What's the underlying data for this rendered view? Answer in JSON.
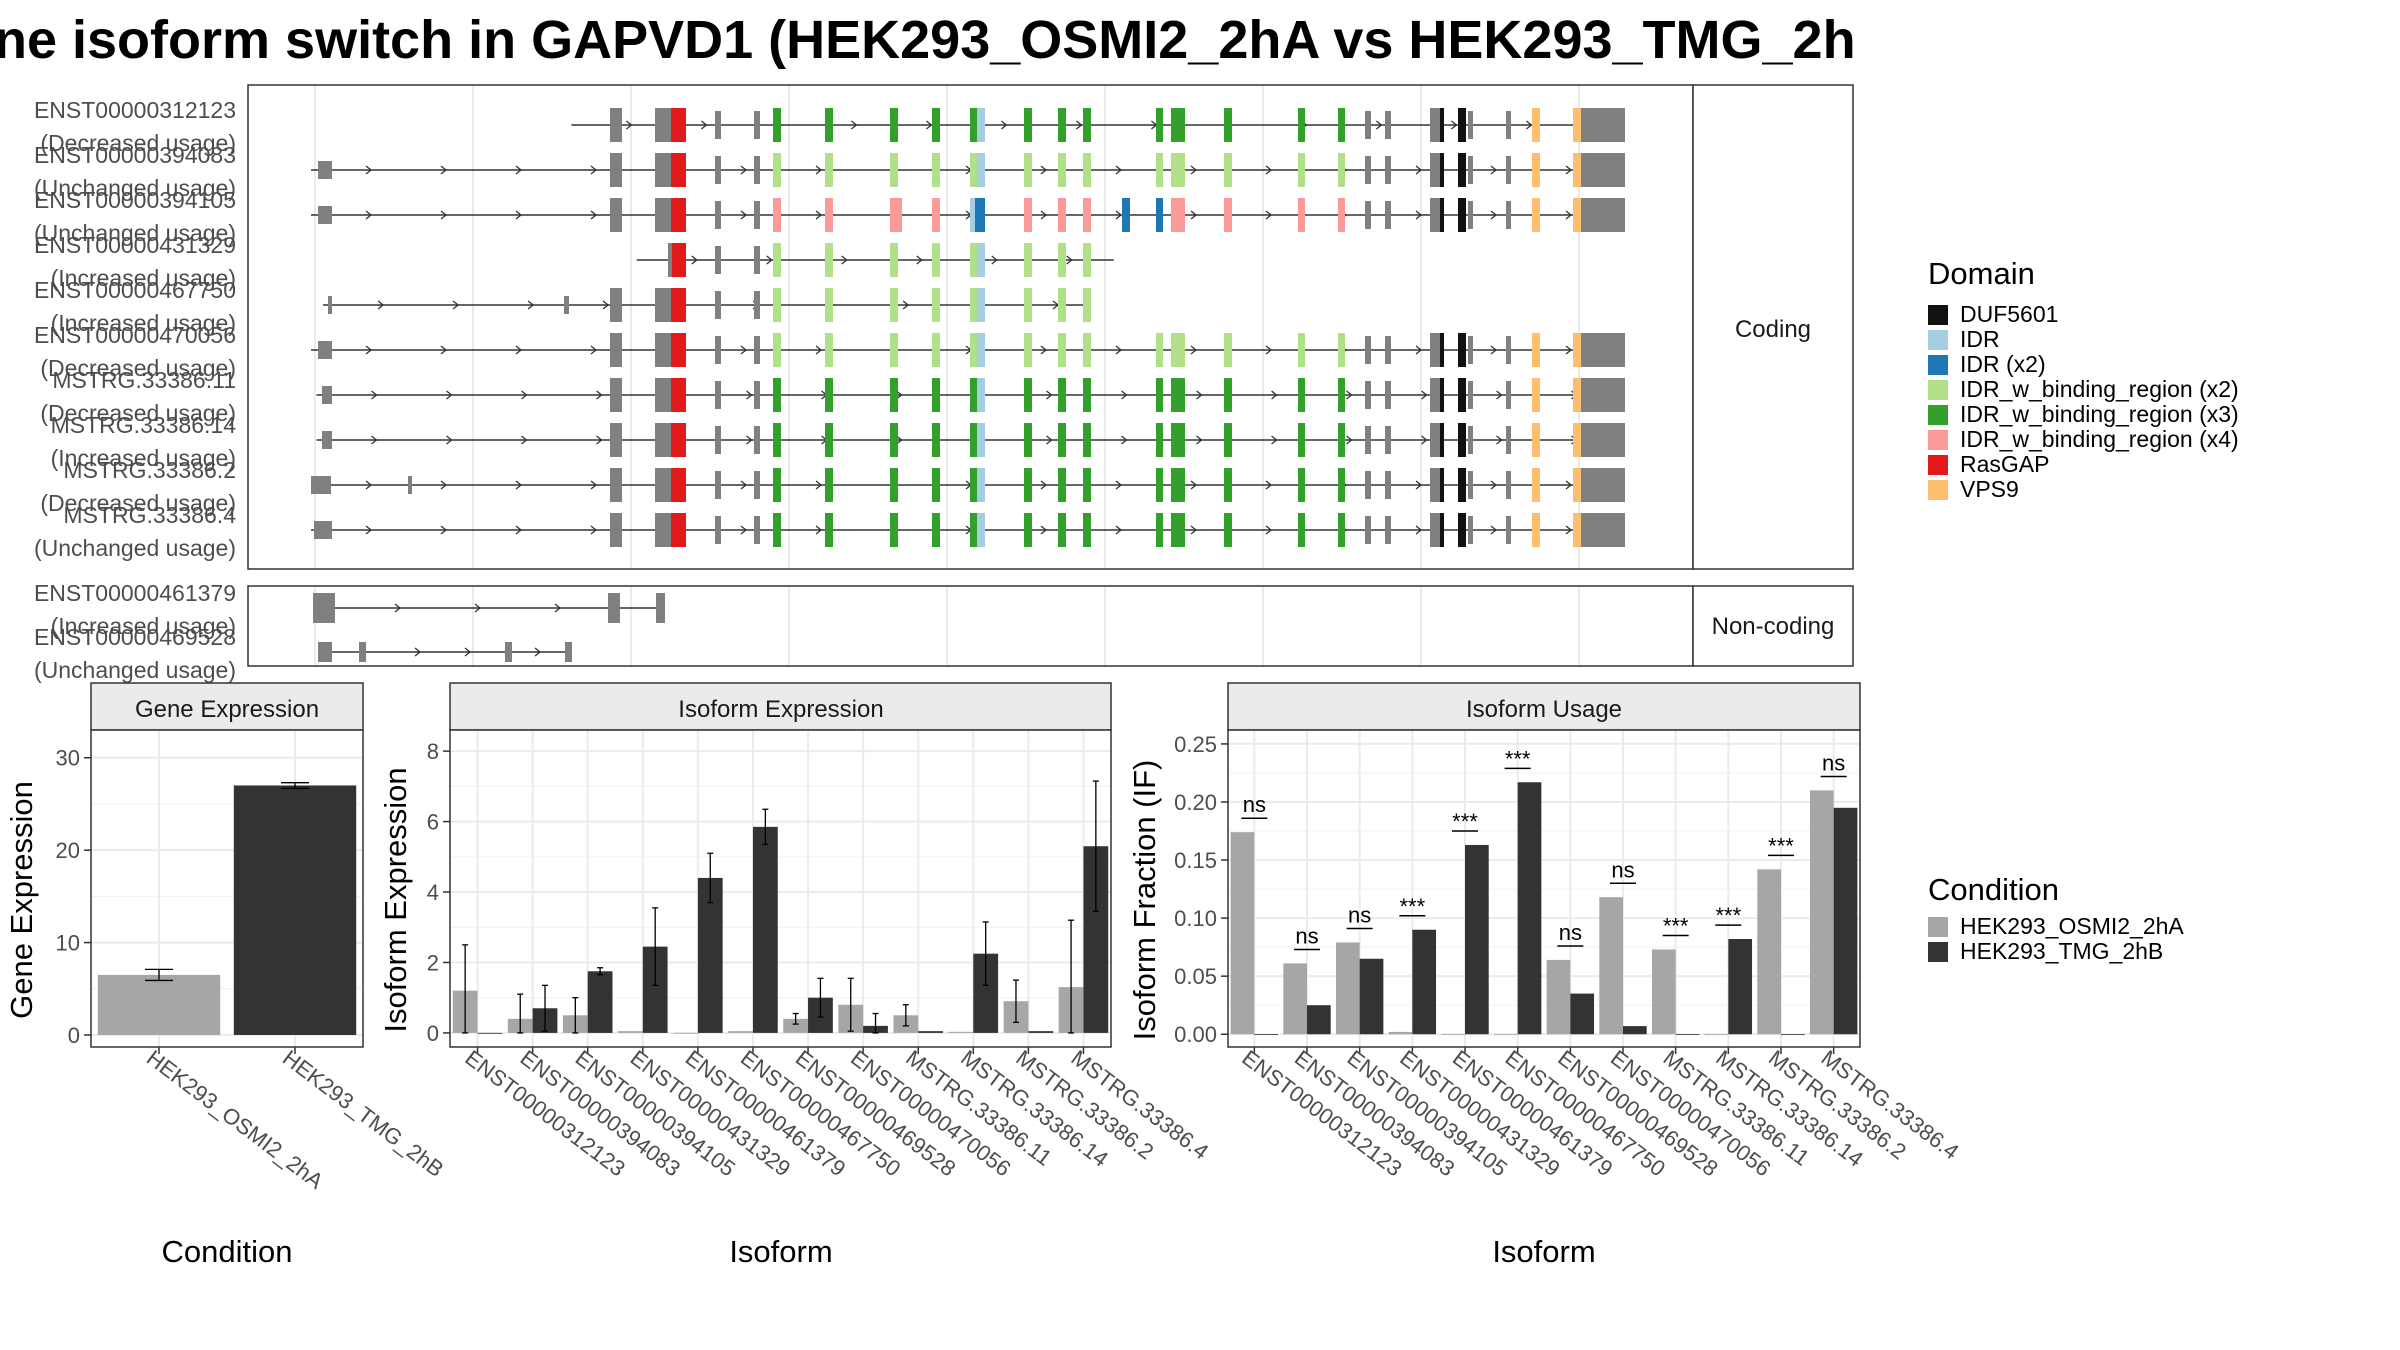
{
  "title": "ne isoform switch in GAPVD1 (HEK293_OSMI2_2hA vs HEK293_TMG_2h",
  "colors": {
    "exon": "#808080",
    "DUF5601": "#111111",
    "IDR": "#a6cee3",
    "IDR (x2)": "#1f78b4",
    "IDR_w_binding_region (x2)": "#b2df8a",
    "IDR_w_binding_region (x3)": "#33a02c",
    "IDR_w_binding_region (x4)": "#fb9a99",
    "RasGAP": "#e31a1c",
    "VPS9": "#fdbf6f",
    "HEK293_OSMI2_2hA": "#a6a6a6",
    "HEK293_TMG_2hB": "#333333"
  },
  "structure": {
    "coding_strip": "Coding",
    "noncoding_strip": "Non-coding",
    "coding": [
      {
        "id": "ENST00000312123",
        "usage": "(Decreased usage)",
        "start": 0.2,
        "end": 0.94,
        "cut": 1.0
      },
      {
        "id": "ENST00000394083",
        "usage": "(Unchanged usage)",
        "start": 0.0,
        "end": 0.94,
        "cut": 1.0
      },
      {
        "id": "ENST00000394105",
        "usage": "(Unchanged usage)",
        "start": 0.0,
        "end": 0.94,
        "cut": 1.0,
        "alt": true
      },
      {
        "id": "ENST00000431329",
        "usage": "(Increased usage)",
        "start": 0.25,
        "end": 0.67,
        "cut": 0.67
      },
      {
        "id": "ENST00000467750",
        "usage": "(Increased usage)",
        "start": 0.01,
        "end": 0.65,
        "cut": 0.65
      },
      {
        "id": "ENST00000470056",
        "usage": "(Decreased usage)",
        "start": 0.0,
        "end": 0.94,
        "cut": 1.0
      },
      {
        "id": "MSTRG.33386.11",
        "usage": "(Decreased usage)",
        "start": 0.005,
        "end": 0.94,
        "cut": 1.0
      },
      {
        "id": "MSTRG.33386.14",
        "usage": "(Increased usage)",
        "start": 0.005,
        "end": 0.94,
        "cut": 1.0
      },
      {
        "id": "MSTRG.33386.2",
        "usage": "(Decreased usage)",
        "start": -0.01,
        "end": 0.94,
        "cut": 1.0
      },
      {
        "id": "MSTRG.33386.4",
        "usage": "(Unchanged usage)",
        "start": -0.005,
        "end": 0.94,
        "cut": 1.0
      }
    ],
    "noncoding": [
      {
        "id": "ENST00000461379",
        "usage": "(Increased usage)"
      },
      {
        "id": "ENST00000469528",
        "usage": "(Unchanged usage)"
      }
    ]
  },
  "domain_legend": {
    "title": "Domain",
    "items": [
      "DUF5601",
      "IDR",
      "IDR (x2)",
      "IDR_w_binding_region (x2)",
      "IDR_w_binding_region (x3)",
      "IDR_w_binding_region (x4)",
      "RasGAP",
      "VPS9"
    ]
  },
  "condition_legend": {
    "title": "Condition",
    "items": [
      "HEK293_OSMI2_2hA",
      "HEK293_TMG_2hB"
    ]
  },
  "chart_data": [
    {
      "type": "bar",
      "panel": "Gene Expression",
      "xlabel": "Condition",
      "ylabel": "Gene Expression",
      "ylim": [
        -1.3,
        33
      ],
      "yticks": [
        0,
        10,
        20,
        30
      ],
      "categories": [
        "HEK293_OSMI2_2hA",
        "HEK293_TMG_2hB"
      ],
      "values": [
        6.5,
        27.0
      ],
      "errors": [
        0.6,
        0.3
      ]
    },
    {
      "type": "bar",
      "panel": "Isoform Expression",
      "xlabel": "Isoform",
      "ylabel": "Isoform Expression",
      "ylim": [
        -0.4,
        8.6
      ],
      "yticks": [
        0,
        2,
        4,
        6,
        8
      ],
      "categories": [
        "ENST00000312123",
        "ENST00000394083",
        "ENST00000394105",
        "ENST00000431329",
        "ENST00000461379",
        "ENST00000467750",
        "ENST00000469528",
        "ENST00000470056",
        "MSTRG.33386.11",
        "MSTRG.33386.14",
        "MSTRG.33386.2",
        "MSTRG.33386.4"
      ],
      "series": [
        {
          "name": "HEK293_OSMI2_2hA",
          "values": [
            1.2,
            0.4,
            0.5,
            0.05,
            0.0,
            0.05,
            0.4,
            0.8,
            0.5,
            0.03,
            0.9,
            1.3
          ],
          "errors": [
            1.3,
            0.7,
            0.5,
            0,
            0,
            0,
            0.15,
            0.75,
            0.3,
            0,
            0.6,
            1.9
          ]
        },
        {
          "name": "HEK293_TMG_2hB",
          "values": [
            0.0,
            0.7,
            1.75,
            2.45,
            4.4,
            5.85,
            1.0,
            0.2,
            0.05,
            2.25,
            0.05,
            5.3
          ],
          "errors": [
            0,
            0.65,
            0.1,
            1.1,
            0.7,
            0.5,
            0.55,
            0.35,
            0,
            0.9,
            0,
            1.85
          ]
        }
      ]
    },
    {
      "type": "bar",
      "panel": "Isoform Usage",
      "xlabel": "Isoform",
      "ylabel": "Isoform Fraction (IF)",
      "ylim": [
        -0.011,
        0.262
      ],
      "yticks": [
        0.0,
        0.05,
        0.1,
        0.15,
        0.2,
        0.25
      ],
      "ytick_labels": [
        "0.00",
        "0.05",
        "0.10",
        "0.15",
        "0.20",
        "0.25"
      ],
      "categories": [
        "ENST00000312123",
        "ENST00000394083",
        "ENST00000394105",
        "ENST00000431329",
        "ENST00000461379",
        "ENST00000467750",
        "ENST00000469528",
        "ENST00000470056",
        "MSTRG.33386.11",
        "MSTRG.33386.14",
        "MSTRG.33386.2",
        "MSTRG.33386.4"
      ],
      "series": [
        {
          "name": "HEK293_OSMI2_2hA",
          "values": [
            0.174,
            0.061,
            0.079,
            0.002,
            0.0,
            0.0,
            0.064,
            0.118,
            0.073,
            0.0,
            0.142,
            0.21
          ]
        },
        {
          "name": "HEK293_TMG_2hB",
          "values": [
            0.0,
            0.025,
            0.065,
            0.09,
            0.163,
            0.217,
            0.035,
            0.007,
            0.0,
            0.082,
            0.0,
            0.195
          ]
        }
      ],
      "significance": [
        "ns",
        "ns",
        "ns",
        "***",
        "***",
        "***",
        "ns",
        "ns",
        "***",
        "***",
        "***",
        "ns"
      ]
    }
  ]
}
